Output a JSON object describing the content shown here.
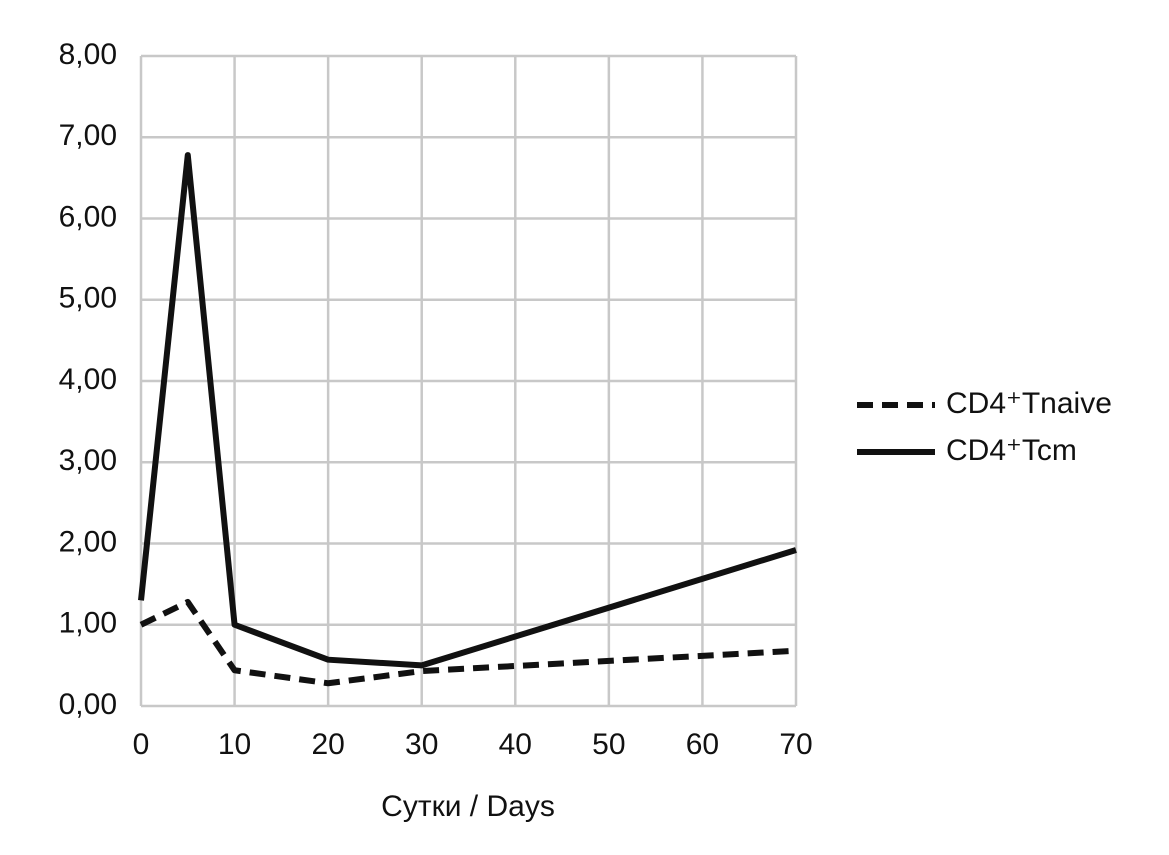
{
  "chart_data": {
    "type": "line",
    "x_label": "Сутки / Days",
    "x": [
      0,
      5,
      10,
      20,
      30,
      70
    ],
    "series": [
      {
        "name": "CD4⁺Tnaive",
        "color": "#111111",
        "dash": "dashed",
        "values": [
          1.0,
          1.28,
          0.44,
          0.28,
          0.43,
          0.68
        ]
      },
      {
        "name": "CD4⁺Tcm",
        "color": "#111111",
        "dash": "solid",
        "values": [
          1.3,
          6.78,
          1.0,
          0.57,
          0.5,
          1.92
        ]
      }
    ],
    "xlim": [
      0,
      70
    ],
    "xticks": [
      0,
      10,
      20,
      30,
      40,
      50,
      60,
      70
    ],
    "ylim": [
      0,
      8
    ],
    "yticks": [
      {
        "value": 0,
        "label": "0,00"
      },
      {
        "value": 1,
        "label": "1,00"
      },
      {
        "value": 2,
        "label": "2,00"
      },
      {
        "value": 3,
        "label": "3,00"
      },
      {
        "value": 4,
        "label": "4,00"
      },
      {
        "value": 5,
        "label": "5,00"
      },
      {
        "value": 6,
        "label": "6,00"
      },
      {
        "value": 7,
        "label": "7,00"
      },
      {
        "value": 8,
        "label": "8,00"
      }
    ],
    "grid": true,
    "legend": "right"
  }
}
